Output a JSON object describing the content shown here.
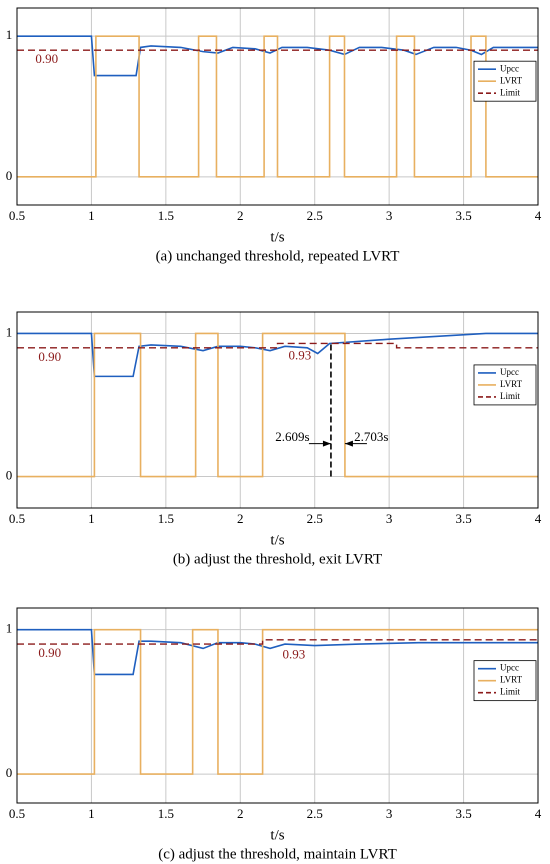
{
  "chart_data": [
    {
      "type": "line",
      "xlabel": "t/s",
      "caption": "(a) unchanged threshold, repeated LVRT",
      "xlim": [
        0.5,
        4
      ],
      "ylim": [
        -0.2,
        1.2
      ],
      "xticks": [
        0.5,
        1,
        1.5,
        2,
        2.5,
        3,
        3.5,
        4
      ],
      "yticks": [
        0,
        1
      ],
      "grid": true,
      "legend": "right",
      "series": [
        {
          "name": "Upcc",
          "color": "#1f5fbf",
          "linestyle": "solid",
          "x": [
            0.5,
            1.0,
            1.02,
            1.3,
            1.33,
            1.4,
            1.6,
            1.75,
            1.85,
            1.95,
            2.1,
            2.2,
            2.28,
            2.45,
            2.6,
            2.7,
            2.8,
            2.95,
            3.1,
            3.18,
            3.3,
            3.45,
            3.55,
            3.62,
            3.7,
            3.85,
            4
          ],
          "values": [
            1,
            1,
            0.72,
            0.72,
            0.92,
            0.93,
            0.92,
            0.89,
            0.88,
            0.92,
            0.91,
            0.88,
            0.92,
            0.92,
            0.9,
            0.87,
            0.92,
            0.92,
            0.9,
            0.87,
            0.92,
            0.92,
            0.9,
            0.87,
            0.92,
            0.92,
            0.92
          ]
        },
        {
          "name": "LVRT",
          "color": "#e8b060",
          "linestyle": "solid",
          "x": [
            0.5,
            1.03,
            1.03,
            1.32,
            1.32,
            1.72,
            1.72,
            1.84,
            1.84,
            2.16,
            2.16,
            2.25,
            2.25,
            2.6,
            2.6,
            2.7,
            2.7,
            3.05,
            3.05,
            3.17,
            3.17,
            3.55,
            3.55,
            3.65,
            3.65,
            4
          ],
          "values": [
            0,
            0,
            1,
            1,
            0,
            0,
            1,
            1,
            0,
            0,
            1,
            1,
            0,
            0,
            1,
            1,
            0,
            0,
            1,
            1,
            0,
            0,
            1,
            1,
            0,
            0
          ]
        },
        {
          "name": "Limit",
          "color": "#8b1a1a",
          "linestyle": "dashed",
          "x": [
            0.5,
            4
          ],
          "values": [
            0.9,
            0.9
          ]
        }
      ],
      "annotations": [
        {
          "text": "0.90",
          "x": 0.7,
          "y": 0.83,
          "color": "#8b1a1a"
        }
      ]
    },
    {
      "type": "line",
      "xlabel": "t/s",
      "caption": "(b) adjust the threshold, exit LVRT",
      "xlim": [
        0.5,
        4
      ],
      "ylim": [
        -0.22,
        1.15
      ],
      "xticks": [
        0.5,
        1,
        1.5,
        2,
        2.5,
        3,
        3.5,
        4
      ],
      "yticks": [
        0,
        1
      ],
      "grid": true,
      "legend": "right",
      "series": [
        {
          "name": "Upcc",
          "color": "#1f5fbf",
          "linestyle": "solid",
          "x": [
            0.5,
            1.0,
            1.02,
            1.28,
            1.32,
            1.4,
            1.6,
            1.75,
            1.85,
            2.0,
            2.1,
            2.2,
            2.3,
            2.45,
            2.52,
            2.6,
            3.0,
            3.65,
            4
          ],
          "values": [
            1,
            1,
            0.7,
            0.7,
            0.91,
            0.92,
            0.91,
            0.88,
            0.91,
            0.91,
            0.9,
            0.88,
            0.91,
            0.9,
            0.86,
            0.93,
            0.96,
            1,
            1
          ]
        },
        {
          "name": "LVRT",
          "color": "#e8b060",
          "linestyle": "solid",
          "x": [
            0.5,
            1.02,
            1.02,
            1.33,
            1.33,
            1.7,
            1.7,
            1.85,
            1.85,
            2.15,
            2.15,
            2.703,
            2.703,
            4
          ],
          "values": [
            0,
            0,
            1,
            1,
            0,
            0,
            1,
            1,
            0,
            0,
            1,
            1,
            0,
            0
          ]
        },
        {
          "name": "Limit",
          "color": "#8b1a1a",
          "linestyle": "dashed",
          "x": [
            0.5,
            2.25,
            2.25,
            3.05,
            3.05,
            4
          ],
          "values": [
            0.9,
            0.9,
            0.93,
            0.93,
            0.9,
            0.9
          ]
        }
      ],
      "vline": {
        "x": 2.609,
        "from": 0,
        "to": 0.93
      },
      "arrows": [
        {
          "x": 2.609,
          "y": 0.23,
          "dir": "right"
        },
        {
          "x": 2.703,
          "y": 0.23,
          "dir": "left"
        }
      ],
      "annotations": [
        {
          "text": "0.90",
          "x": 0.72,
          "y": 0.83,
          "color": "#8b1a1a"
        },
        {
          "text": "0.93",
          "x": 2.4,
          "y": 0.84,
          "color": "#8b1a1a"
        },
        {
          "text": "2.609s",
          "x": 2.35,
          "y": 0.27,
          "color": "#000000"
        },
        {
          "text": "2.703s",
          "x": 2.88,
          "y": 0.27,
          "color": "#000000"
        }
      ]
    },
    {
      "type": "line",
      "xlabel": "t/s",
      "caption": "(c) adjust the threshold, maintain LVRT",
      "xlim": [
        0.5,
        4
      ],
      "ylim": [
        -0.2,
        1.15
      ],
      "xticks": [
        0.5,
        1,
        1.5,
        2,
        2.5,
        3,
        3.5,
        4
      ],
      "yticks": [
        0,
        1
      ],
      "grid": true,
      "legend": "right",
      "series": [
        {
          "name": "Upcc",
          "color": "#1f5fbf",
          "linestyle": "solid",
          "x": [
            0.5,
            1.0,
            1.02,
            1.28,
            1.32,
            1.4,
            1.6,
            1.75,
            1.85,
            2.0,
            2.1,
            2.2,
            2.3,
            2.5,
            2.8,
            3.2,
            4
          ],
          "values": [
            1,
            1,
            0.69,
            0.69,
            0.92,
            0.92,
            0.91,
            0.87,
            0.91,
            0.91,
            0.9,
            0.87,
            0.9,
            0.89,
            0.9,
            0.91,
            0.91
          ]
        },
        {
          "name": "LVRT",
          "color": "#e8b060",
          "linestyle": "solid",
          "x": [
            0.5,
            1.02,
            1.02,
            1.33,
            1.33,
            1.68,
            1.68,
            1.85,
            1.85,
            2.15,
            2.15,
            4
          ],
          "values": [
            0,
            0,
            1,
            1,
            0,
            0,
            1,
            1,
            0,
            0,
            1,
            1
          ]
        },
        {
          "name": "Limit",
          "color": "#8b1a1a",
          "linestyle": "dashed",
          "x": [
            0.5,
            2.15,
            2.15,
            4
          ],
          "values": [
            0.9,
            0.9,
            0.93,
            0.93
          ]
        }
      ],
      "annotations": [
        {
          "text": "0.90",
          "x": 0.72,
          "y": 0.83,
          "color": "#8b1a1a"
        },
        {
          "text": "0.93",
          "x": 2.36,
          "y": 0.82,
          "color": "#8b1a1a"
        }
      ]
    }
  ]
}
